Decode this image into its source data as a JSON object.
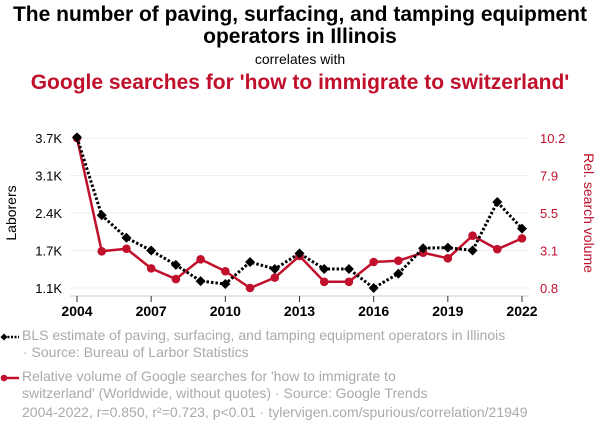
{
  "header": {
    "title": "The number of paving, surfacing, and tamping equipment operators in Illinois",
    "subtitle": "correlates with",
    "title2": "Google searches for 'how to immigrate to switzerland'"
  },
  "legend": {
    "series1_line1": "BLS estimate of paving, surfacing, and tamping equipment operators in Illinois",
    "series1_line2": "· Source: Bureau of Larbor Statistics",
    "series2_line1": "Relative volume of Google searches for 'how to immigrate to",
    "series2_line2": "switzerland' (Worldwide, without quotes) · Source: Google Trends"
  },
  "footer": "2004-2022, r=0.850, r²=0.723, p<0.01 · tylervigen.com/spurious/correlation/21949",
  "colors": {
    "series1": "#000000",
    "series2": "#c0102c",
    "grid": "#eeeeee",
    "axis": "#cccccc",
    "muted": "#aaaaaa"
  },
  "chart_data": {
    "type": "line",
    "title": "The number of paving, surfacing, and tamping equipment operators in Illinois correlates with Google searches for 'how to immigrate to switzerland'",
    "x": [
      2004,
      2005,
      2006,
      2007,
      2008,
      2009,
      2010,
      2011,
      2012,
      2013,
      2014,
      2015,
      2016,
      2017,
      2018,
      2019,
      2020,
      2021,
      2022
    ],
    "xlim": [
      2004,
      2022
    ],
    "xticks": [
      "2004",
      "2007",
      "2010",
      "2013",
      "2016",
      "2019",
      "2022"
    ],
    "ylabel_left": "Laborers",
    "ylabel_right": "Rel. search volume",
    "ylim_left": [
      1090,
      3690
    ],
    "ylim_right": [
      0.8,
      10.2
    ],
    "yticks_left": [
      "3.7K",
      "3.1K",
      "2.4K",
      "1.7K",
      "1.1K"
    ],
    "yticks_right": [
      "10.2",
      "7.9",
      "5.5",
      "3.1",
      "0.8"
    ],
    "grid": true,
    "series": [
      {
        "name": "BLS estimate of paving, surfacing, and tamping equipment operators in Illinois",
        "axis": "left",
        "style": "dotted-diamond",
        "values": [
          3700,
          2350,
          1960,
          1740,
          1490,
          1210,
          1160,
          1540,
          1420,
          1690,
          1420,
          1420,
          1090,
          1340,
          1780,
          1790,
          1740,
          2580,
          2120
        ]
      },
      {
        "name": "Relative volume of Google searches for 'how to immigrate to switzerland'",
        "axis": "right",
        "style": "solid-circle",
        "values": [
          10.2,
          3.1,
          3.26,
          2.03,
          1.36,
          2.6,
          1.85,
          0.8,
          1.45,
          2.81,
          1.19,
          1.19,
          2.43,
          2.51,
          3.01,
          2.66,
          4.08,
          3.23,
          3.91
        ]
      }
    ]
  }
}
